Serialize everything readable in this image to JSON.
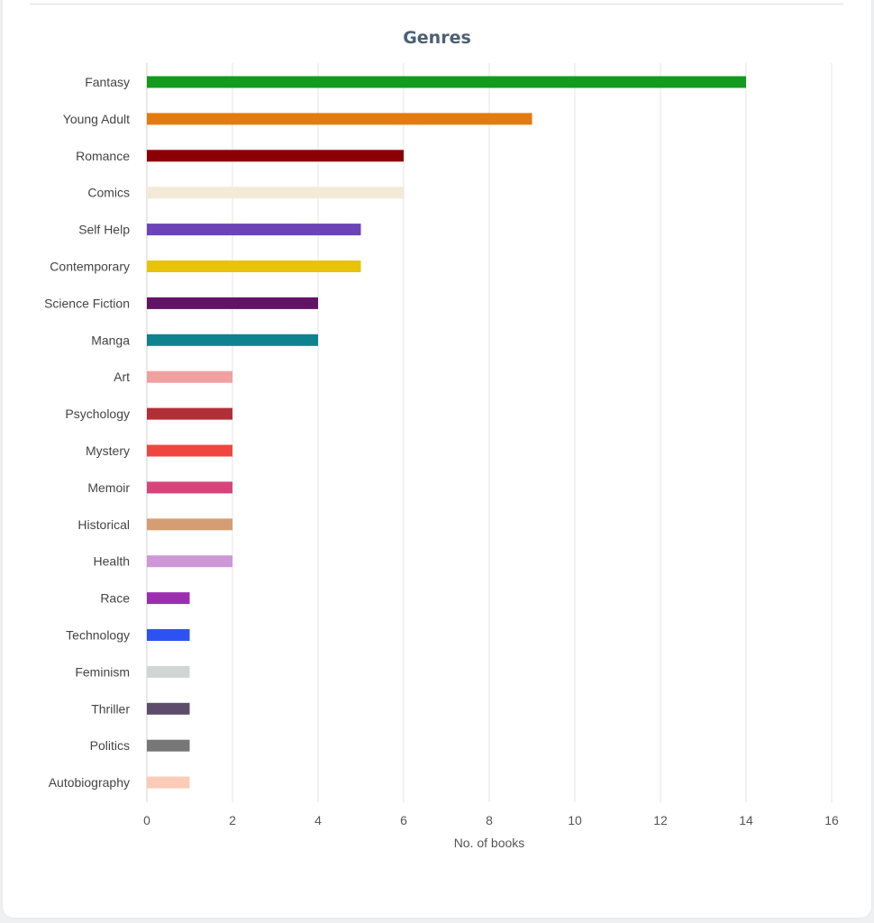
{
  "chart_data": {
    "type": "bar",
    "orientation": "horizontal",
    "title": "Genres",
    "xlabel": "No. of books",
    "ylabel": "",
    "xlim": [
      0,
      16
    ],
    "xticks": [
      0,
      2,
      4,
      6,
      8,
      10,
      12,
      14,
      16
    ],
    "grid": true,
    "categories": [
      "Fantasy",
      "Young Adult",
      "Romance",
      "Comics",
      "Self Help",
      "Contemporary",
      "Science Fiction",
      "Manga",
      "Art",
      "Psychology",
      "Mystery",
      "Memoir",
      "Historical",
      "Health",
      "Race",
      "Technology",
      "Feminism",
      "Thriller",
      "Politics",
      "Autobiography"
    ],
    "values": [
      14,
      9,
      6,
      6,
      5,
      5,
      4,
      4,
      2,
      2,
      2,
      2,
      2,
      2,
      1,
      1,
      1,
      1,
      1,
      1
    ],
    "colors": [
      "#129b1f",
      "#e47b0e",
      "#8a0005",
      "#f4ead8",
      "#6c44b8",
      "#e8c30a",
      "#611466",
      "#0e838f",
      "#f0a0a0",
      "#b13038",
      "#ef4740",
      "#d8447a",
      "#d59e72",
      "#ce97d8",
      "#9c2fb0",
      "#2e52f2",
      "#cfd6d3",
      "#5e4d6a",
      "#777777",
      "#fccbb8"
    ]
  }
}
